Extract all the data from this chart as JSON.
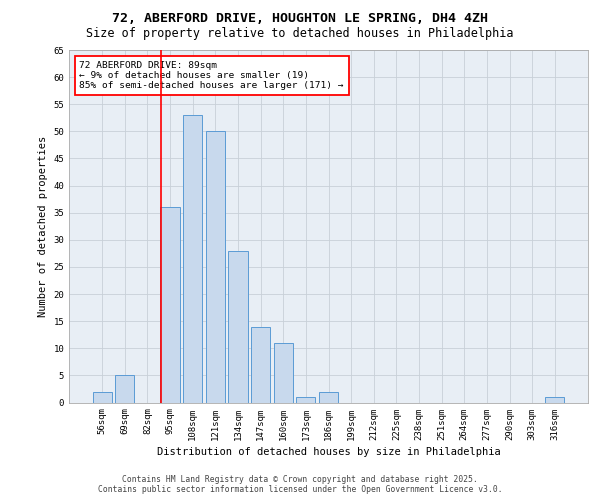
{
  "title_line1": "72, ABERFORD DRIVE, HOUGHTON LE SPRING, DH4 4ZH",
  "title_line2": "Size of property relative to detached houses in Philadelphia",
  "xlabel": "Distribution of detached houses by size in Philadelphia",
  "ylabel": "Number of detached properties",
  "categories": [
    "56sqm",
    "69sqm",
    "82sqm",
    "95sqm",
    "108sqm",
    "121sqm",
    "134sqm",
    "147sqm",
    "160sqm",
    "173sqm",
    "186sqm",
    "199sqm",
    "212sqm",
    "225sqm",
    "238sqm",
    "251sqm",
    "264sqm",
    "277sqm",
    "290sqm",
    "303sqm",
    "316sqm"
  ],
  "values": [
    2,
    5,
    0,
    36,
    53,
    50,
    28,
    14,
    11,
    1,
    2,
    0,
    0,
    0,
    0,
    0,
    0,
    0,
    0,
    0,
    1
  ],
  "bar_color": "#c8d9ed",
  "bar_edge_color": "#5b9bd5",
  "vline_bin_index": 2.6,
  "annotation_text": "72 ABERFORD DRIVE: 89sqm\n← 9% of detached houses are smaller (19)\n85% of semi-detached houses are larger (171) →",
  "annotation_box_color": "white",
  "annotation_box_edgecolor": "red",
  "vline_color": "red",
  "ylim": [
    0,
    65
  ],
  "yticks": [
    0,
    5,
    10,
    15,
    20,
    25,
    30,
    35,
    40,
    45,
    50,
    55,
    60,
    65
  ],
  "grid_color": "#c8d0d8",
  "background_color": "#e8eef5",
  "footer_line1": "Contains HM Land Registry data © Crown copyright and database right 2025.",
  "footer_line2": "Contains public sector information licensed under the Open Government Licence v3.0.",
  "title_fontsize": 9.5,
  "subtitle_fontsize": 8.5,
  "label_fontsize": 7.5,
  "tick_fontsize": 6.5,
  "footer_fontsize": 5.8,
  "annotation_fontsize": 6.8
}
